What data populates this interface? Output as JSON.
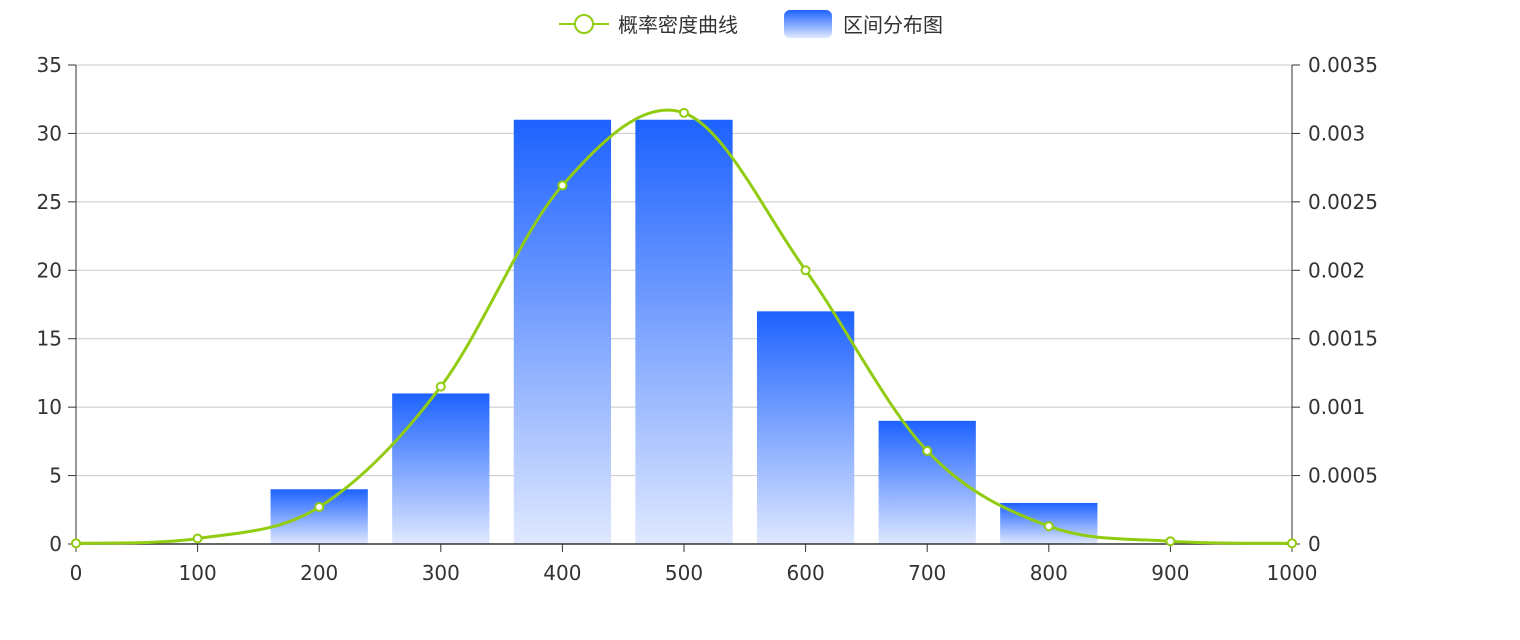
{
  "colors": {
    "line": "#91cc12",
    "bar_top": "#1d62ff",
    "bar_bottom": "#dfe8ff",
    "grid": "#c8c8c8",
    "axis": "#333333",
    "text": "#333333"
  },
  "chart_data": {
    "type": "bar",
    "legend": {
      "position": "top-center",
      "items": [
        {
          "label": "概率密度曲线",
          "kind": "line-with-circle",
          "color": "#91cc12"
        },
        {
          "label": "区间分布图",
          "kind": "bar",
          "color": "#1d62ff"
        }
      ]
    },
    "x_axis": {
      "min": 0,
      "max": 1000,
      "ticks": [
        0,
        100,
        200,
        300,
        400,
        500,
        600,
        700,
        800,
        900,
        1000
      ],
      "tick_labels": [
        "0",
        "100",
        "200",
        "300",
        "400",
        "500",
        "600",
        "700",
        "800",
        "900",
        "1000"
      ]
    },
    "y_left": {
      "min": 0,
      "max": 35,
      "ticks": [
        0,
        5,
        10,
        15,
        20,
        25,
        30,
        35
      ],
      "tick_labels": [
        "0",
        "5",
        "10",
        "15",
        "20",
        "25",
        "30",
        "35"
      ]
    },
    "y_right": {
      "min": 0,
      "max": 0.0035,
      "ticks": [
        0,
        0.0005,
        0.001,
        0.0015,
        0.002,
        0.0025,
        0.003,
        0.0035
      ],
      "tick_labels": [
        "0",
        "0.0005",
        "0.001",
        "0.0015",
        "0.002",
        "0.0025",
        "0.003",
        "0.0035"
      ]
    },
    "grid": true,
    "series": [
      {
        "name": "区间分布图",
        "type": "bar",
        "axis": "left",
        "bar_width": 80,
        "x": [
          200,
          300,
          400,
          500,
          600,
          700,
          800
        ],
        "values": [
          4,
          11,
          31,
          31,
          17,
          9,
          3
        ]
      },
      {
        "name": "概率密度曲线",
        "type": "line",
        "smooth": true,
        "axis": "right",
        "x": [
          0,
          100,
          200,
          300,
          400,
          500,
          600,
          700,
          800,
          900,
          1000
        ],
        "values": [
          5e-06,
          4e-05,
          0.00027,
          0.00115,
          0.00262,
          0.00315,
          0.002,
          0.00068,
          0.00013,
          2e-05,
          5e-06
        ]
      }
    ]
  }
}
